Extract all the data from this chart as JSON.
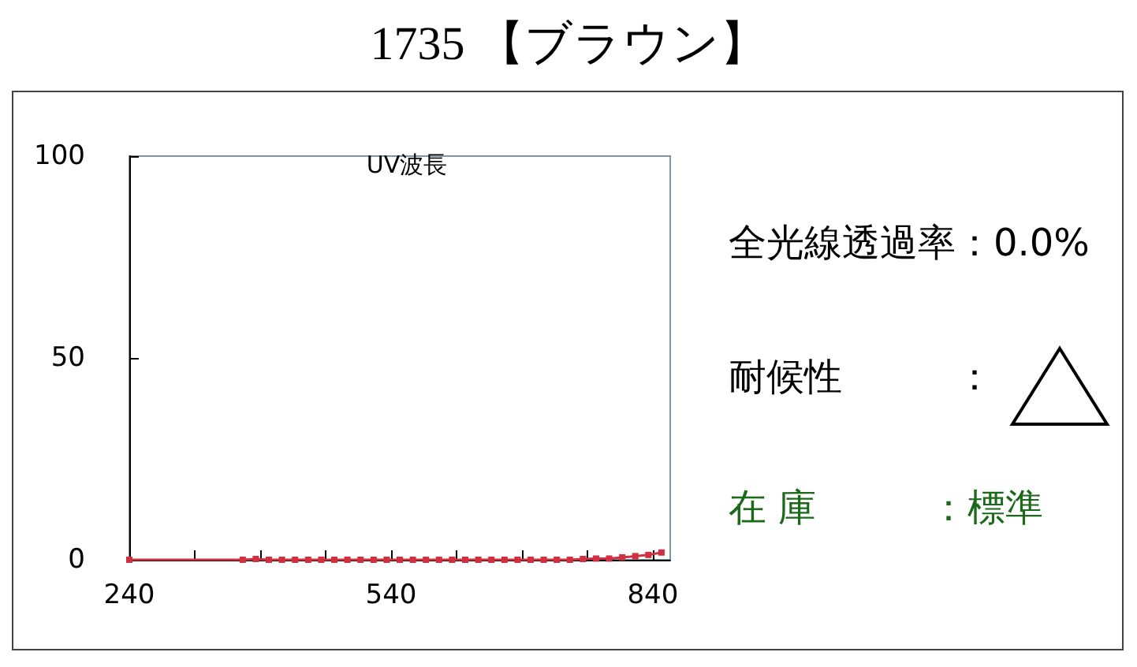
{
  "chart_data": {
    "type": "line",
    "title": "1735 【ブラウン】",
    "subtitle": "UV波長",
    "x": [
      240,
      370,
      385,
      400,
      415,
      430,
      445,
      460,
      475,
      490,
      505,
      520,
      535,
      550,
      565,
      580,
      595,
      610,
      625,
      640,
      655,
      670,
      685,
      700,
      715,
      730,
      745,
      760,
      775,
      790,
      805,
      820,
      835,
      850
    ],
    "series": [
      {
        "color": "#d03040",
        "values": [
          0,
          0,
          0.2,
          0,
          0,
          0,
          0,
          0,
          0,
          0,
          0,
          0,
          0,
          0,
          0,
          0,
          0,
          0,
          0,
          0,
          0,
          0,
          0,
          0,
          0,
          0,
          0,
          0.2,
          0.3,
          0.3,
          0.6,
          0.9,
          1.2,
          1.8
        ]
      }
    ],
    "xlim": [
      240,
      860
    ],
    "xticks": [
      240,
      {
        "value": 315,
        "label": null
      },
      {
        "value": 390,
        "label": null
      },
      {
        "value": 465,
        "label": null
      },
      540,
      {
        "value": 615,
        "label": null
      },
      {
        "value": 690,
        "label": null
      },
      {
        "value": 765,
        "label": null
      },
      840
    ],
    "ylim": [
      0,
      100
    ],
    "yticks": [
      0,
      50,
      100
    ],
    "grid": false,
    "marker": "square",
    "line_style": "solid",
    "annotations": [
      "全光線透過率：0.0%",
      "耐候性　　　：",
      "在 庫　　　：標準"
    ]
  }
}
